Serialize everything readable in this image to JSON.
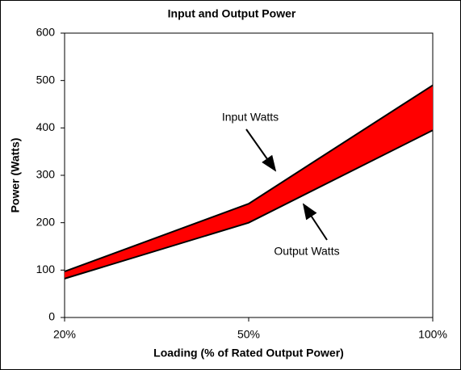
{
  "chart_data": {
    "type": "area",
    "title": "Input and Output Power",
    "x_label": "Loading (% of Rated Output Power)",
    "y_label": "Power (Watts)",
    "categories": [
      "20%",
      "50%",
      "100%"
    ],
    "series": [
      {
        "name": "Input Watts",
        "color": "#000000",
        "values": [
          97,
          240,
          490
        ]
      },
      {
        "name": "Output Watts",
        "color": "#000000",
        "values": [
          82,
          200,
          395
        ]
      }
    ],
    "fill": "#ff0000",
    "ylim": [
      0,
      600
    ],
    "yticks": [
      0,
      100,
      200,
      300,
      400,
      500,
      600
    ]
  }
}
